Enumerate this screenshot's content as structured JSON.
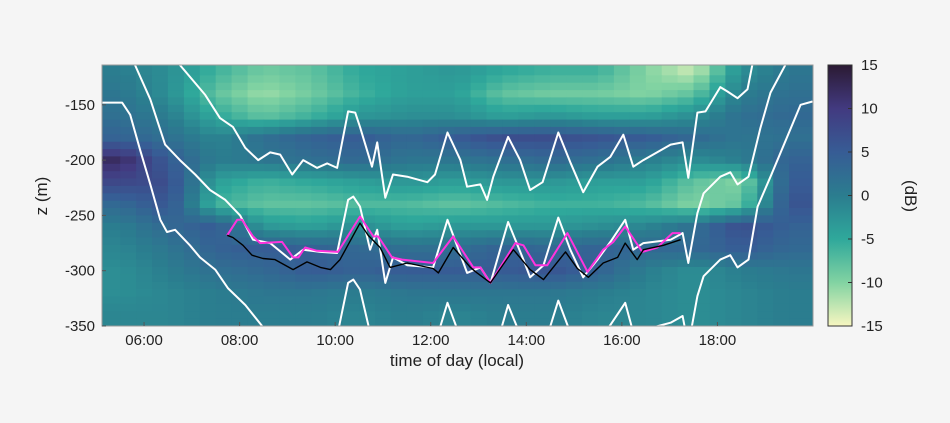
{
  "chart_data": {
    "type": "heatmap",
    "title": "",
    "xlabel": "time of day (local)",
    "ylabel": "z (m)",
    "xlim_hours": [
      5.12,
      20.0
    ],
    "ylim": [
      -350,
      -114
    ],
    "x_ticks": [
      {
        "v": 6,
        "label": "06:00"
      },
      {
        "v": 8,
        "label": "08:00"
      },
      {
        "v": 10,
        "label": "10:00"
      },
      {
        "v": 12,
        "label": "12:00"
      },
      {
        "v": 14,
        "label": "14:00"
      },
      {
        "v": 16,
        "label": "16:00"
      },
      {
        "v": 18,
        "label": "18:00"
      }
    ],
    "y_ticks": [
      {
        "v": -150,
        "label": "-150"
      },
      {
        "v": -200,
        "label": "-200"
      },
      {
        "v": -250,
        "label": "-250"
      },
      {
        "v": -300,
        "label": "-300"
      },
      {
        "v": -350,
        "label": "-350"
      }
    ],
    "colorbar": {
      "label": "(dB)",
      "range": [
        -15,
        15
      ],
      "ticks": [
        {
          "v": 15,
          "label": "15"
        },
        {
          "v": 10,
          "label": "10"
        },
        {
          "v": 5,
          "label": "5"
        },
        {
          "v": 0,
          "label": "0"
        },
        {
          "v": -5,
          "label": "-5"
        },
        {
          "v": -10,
          "label": "-10"
        },
        {
          "v": -15,
          "label": "-15"
        }
      ],
      "colormap_stops": [
        [
          -15,
          "#f7f6c0"
        ],
        [
          -10,
          "#82d3a2"
        ],
        [
          -5,
          "#2fa89b"
        ],
        [
          0,
          "#2b7d8f"
        ],
        [
          5,
          "#375c95"
        ],
        [
          10,
          "#423a80"
        ],
        [
          15,
          "#2b1a33"
        ]
      ]
    },
    "heatmap": {
      "x_hours": [
        5.5,
        6.5,
        7.5,
        8.5,
        9.5,
        10.5,
        11.5,
        12.5,
        13.5,
        14.5,
        15.5,
        16.5,
        17.5,
        18.5,
        19.5
      ],
      "z_m": [
        -120,
        -140,
        -160,
        -180,
        -200,
        -220,
        -240,
        -260,
        -280,
        -300,
        -320,
        -340
      ],
      "values_db": [
        [
          0,
          -2,
          -6,
          -9,
          -8,
          -5,
          -4,
          -3,
          -5,
          -6,
          -6,
          -10,
          -13,
          -2,
          1
        ],
        [
          1,
          -2,
          -8,
          -11,
          -9,
          -6,
          -4,
          -4,
          -8,
          -9,
          -9,
          -10,
          -8,
          0,
          2
        ],
        [
          2,
          0,
          -5,
          -8,
          -6,
          -3,
          -2,
          -2,
          -4,
          -3,
          -4,
          -4,
          -2,
          2,
          3
        ],
        [
          4,
          2,
          -1,
          2,
          4,
          5,
          3,
          5,
          7,
          7,
          6,
          5,
          3,
          1,
          2
        ],
        [
          12,
          5,
          0,
          1,
          2,
          3,
          1,
          1,
          2,
          3,
          2,
          0,
          -2,
          0,
          4
        ],
        [
          8,
          7,
          -4,
          -6,
          -5,
          -4,
          -3,
          -4,
          -3,
          -3,
          -4,
          -4,
          -8,
          -10,
          5
        ],
        [
          3,
          6,
          -6,
          -8,
          -8,
          -7,
          -7,
          -8,
          -7,
          -6,
          -6,
          -7,
          -10,
          -8,
          6
        ],
        [
          0,
          3,
          5,
          -3,
          -4,
          -2,
          -4,
          -3,
          -3,
          -3,
          -2,
          -1,
          2,
          7,
          4
        ],
        [
          -1,
          1,
          4,
          5,
          4,
          3,
          2,
          2,
          4,
          3,
          4,
          3,
          3,
          5,
          3
        ],
        [
          -2,
          0,
          2,
          3,
          5,
          4,
          5,
          5,
          5,
          6,
          4,
          0,
          -2,
          0,
          1
        ],
        [
          -2,
          -1,
          0,
          1,
          1,
          0,
          1,
          1,
          1,
          1,
          0,
          -1,
          -2,
          -1,
          0
        ],
        [
          -1,
          -1,
          0,
          0,
          0,
          -1,
          0,
          -1,
          0,
          0,
          -1,
          -1,
          -2,
          -1,
          0
        ]
      ]
    },
    "lines": [
      {
        "color": "#ffffff",
        "points": [
          [
            6.75,
            -114
          ],
          [
            7.28,
            -141
          ],
          [
            7.59,
            -162
          ],
          [
            7.86,
            -170
          ],
          [
            8.12,
            -189
          ],
          [
            8.39,
            -200
          ],
          [
            8.64,
            -193
          ],
          [
            8.85,
            -195
          ],
          [
            9.1,
            -213
          ],
          [
            9.33,
            -200
          ],
          [
            9.62,
            -207
          ],
          [
            9.83,
            -203
          ],
          [
            10.04,
            -207
          ],
          [
            10.27,
            -156
          ],
          [
            10.42,
            -157
          ],
          [
            10.52,
            -170
          ],
          [
            10.77,
            -206
          ],
          [
            10.88,
            -184
          ],
          [
            11.05,
            -234
          ],
          [
            11.21,
            -213
          ],
          [
            11.51,
            -215
          ],
          [
            11.93,
            -220
          ],
          [
            12.09,
            -213
          ],
          [
            12.35,
            -175
          ],
          [
            12.62,
            -200
          ],
          [
            12.76,
            -224
          ],
          [
            13.04,
            -222
          ],
          [
            13.18,
            -236
          ],
          [
            13.31,
            -215
          ],
          [
            13.62,
            -179
          ],
          [
            13.87,
            -200
          ],
          [
            14.08,
            -227
          ],
          [
            14.34,
            -220
          ],
          [
            14.67,
            -175
          ],
          [
            14.92,
            -202
          ],
          [
            15.19,
            -229
          ],
          [
            15.49,
            -206
          ],
          [
            15.76,
            -197
          ],
          [
            16.03,
            -177
          ],
          [
            16.24,
            -206
          ],
          [
            16.45,
            -200
          ],
          [
            17.02,
            -186
          ],
          [
            17.27,
            -184
          ],
          [
            17.39,
            -216
          ],
          [
            17.58,
            -157
          ],
          [
            17.75,
            -156
          ],
          [
            18.06,
            -134
          ],
          [
            18.21,
            -138
          ],
          [
            18.42,
            -144
          ],
          [
            18.63,
            -136
          ],
          [
            18.73,
            -114
          ]
        ]
      },
      {
        "color": "#ffffff",
        "points": [
          [
            5.81,
            -114
          ],
          [
            6.13,
            -145
          ],
          [
            6.44,
            -186
          ],
          [
            6.75,
            -200
          ],
          [
            7.07,
            -213
          ],
          [
            7.38,
            -227
          ],
          [
            7.7,
            -236
          ],
          [
            8.01,
            -250
          ],
          [
            8.28,
            -272
          ],
          [
            8.64,
            -275
          ],
          [
            9.06,
            -290
          ],
          [
            9.33,
            -281
          ],
          [
            9.69,
            -283
          ],
          [
            10.04,
            -284
          ],
          [
            10.27,
            -236
          ],
          [
            10.38,
            -233
          ],
          [
            10.52,
            -242
          ],
          [
            10.73,
            -281
          ],
          [
            10.88,
            -263
          ],
          [
            11.05,
            -311
          ],
          [
            11.21,
            -288
          ],
          [
            11.51,
            -295
          ],
          [
            12.05,
            -297
          ],
          [
            12.35,
            -254
          ],
          [
            12.76,
            -302
          ],
          [
            13.04,
            -297
          ],
          [
            13.25,
            -311
          ],
          [
            13.62,
            -256
          ],
          [
            13.94,
            -290
          ],
          [
            14.08,
            -306
          ],
          [
            14.36,
            -295
          ],
          [
            14.67,
            -252
          ],
          [
            14.92,
            -281
          ],
          [
            15.19,
            -306
          ],
          [
            15.49,
            -290
          ],
          [
            15.76,
            -274
          ],
          [
            16.07,
            -254
          ],
          [
            16.24,
            -281
          ],
          [
            16.45,
            -275
          ],
          [
            17.02,
            -272
          ],
          [
            17.27,
            -266
          ],
          [
            17.39,
            -293
          ],
          [
            17.58,
            -248
          ],
          [
            17.71,
            -230
          ],
          [
            18.06,
            -215
          ],
          [
            18.27,
            -211
          ],
          [
            18.42,
            -222
          ],
          [
            18.65,
            -215
          ],
          [
            18.9,
            -171
          ],
          [
            19.11,
            -139
          ],
          [
            19.42,
            -114
          ]
        ]
      },
      {
        "color": "#ffffff",
        "points": [
          [
            5.12,
            -148
          ],
          [
            5.54,
            -148
          ],
          [
            5.71,
            -159
          ],
          [
            5.92,
            -191
          ],
          [
            6.13,
            -222
          ],
          [
            6.34,
            -254
          ],
          [
            6.48,
            -265
          ],
          [
            6.65,
            -263
          ],
          [
            6.96,
            -277
          ],
          [
            7.17,
            -288
          ],
          [
            7.49,
            -299
          ],
          [
            7.76,
            -316
          ],
          [
            8.12,
            -331
          ],
          [
            8.47,
            -350
          ],
          [
            9.0,
            -375
          ],
          [
            9.69,
            -358
          ],
          [
            10.04,
            -359
          ],
          [
            10.27,
            -311
          ],
          [
            10.38,
            -308
          ],
          [
            10.52,
            -317
          ],
          [
            10.73,
            -356
          ],
          [
            11.4,
            -380
          ],
          [
            12.05,
            -372
          ],
          [
            12.35,
            -329
          ],
          [
            12.76,
            -377
          ],
          [
            13.25,
            -386
          ],
          [
            13.62,
            -331
          ],
          [
            13.94,
            -365
          ],
          [
            14.36,
            -370
          ],
          [
            14.67,
            -327
          ],
          [
            14.92,
            -356
          ],
          [
            15.3,
            -375
          ],
          [
            15.76,
            -349
          ],
          [
            16.07,
            -329
          ],
          [
            16.24,
            -356
          ],
          [
            17.02,
            -347
          ],
          [
            17.27,
            -341
          ],
          [
            17.39,
            -368
          ],
          [
            17.58,
            -323
          ],
          [
            17.71,
            -305
          ],
          [
            18.06,
            -290
          ],
          [
            18.27,
            -286
          ],
          [
            18.42,
            -297
          ],
          [
            18.65,
            -290
          ],
          [
            18.84,
            -242
          ],
          [
            19.11,
            -215
          ],
          [
            19.74,
            -150
          ],
          [
            19.99,
            -147
          ]
        ]
      },
      {
        "color": "#ff33dd",
        "points": [
          [
            7.74,
            -268
          ],
          [
            7.95,
            -254
          ],
          [
            8.05,
            -254
          ],
          [
            8.28,
            -269
          ],
          [
            8.43,
            -275
          ],
          [
            8.89,
            -274
          ],
          [
            9.12,
            -288
          ],
          [
            9.23,
            -288
          ],
          [
            9.37,
            -279
          ],
          [
            9.62,
            -282
          ],
          [
            10.06,
            -283
          ],
          [
            10.52,
            -251
          ],
          [
            10.8,
            -269
          ],
          [
            10.9,
            -269
          ],
          [
            11.19,
            -288
          ],
          [
            11.4,
            -290
          ],
          [
            12.05,
            -293
          ],
          [
            12.47,
            -269
          ],
          [
            12.89,
            -297
          ],
          [
            13.04,
            -297
          ],
          [
            13.25,
            -311
          ],
          [
            13.77,
            -275
          ],
          [
            13.94,
            -277
          ],
          [
            14.19,
            -295
          ],
          [
            14.44,
            -295
          ],
          [
            14.86,
            -266
          ],
          [
            15.28,
            -301
          ],
          [
            15.61,
            -281
          ],
          [
            15.82,
            -274
          ],
          [
            16.07,
            -260
          ],
          [
            16.43,
            -283
          ],
          [
            16.74,
            -279
          ],
          [
            17.06,
            -266
          ],
          [
            17.23,
            -266
          ]
        ]
      },
      {
        "color": "#000000",
        "points": [
          [
            7.74,
            -268
          ],
          [
            7.86,
            -270
          ],
          [
            8.07,
            -277
          ],
          [
            8.26,
            -286
          ],
          [
            8.49,
            -289
          ],
          [
            8.74,
            -290
          ],
          [
            9.12,
            -299
          ],
          [
            9.41,
            -292
          ],
          [
            9.69,
            -297
          ],
          [
            9.9,
            -299
          ],
          [
            10.1,
            -290
          ],
          [
            10.52,
            -257
          ],
          [
            10.69,
            -268
          ],
          [
            10.94,
            -279
          ],
          [
            11.15,
            -297
          ],
          [
            11.51,
            -293
          ],
          [
            12.05,
            -298
          ],
          [
            12.16,
            -302
          ],
          [
            12.47,
            -279
          ],
          [
            12.83,
            -297
          ],
          [
            12.97,
            -302
          ],
          [
            13.25,
            -311
          ],
          [
            13.73,
            -281
          ],
          [
            14.08,
            -299
          ],
          [
            14.36,
            -308
          ],
          [
            14.82,
            -283
          ],
          [
            15.07,
            -298
          ],
          [
            15.3,
            -306
          ],
          [
            15.61,
            -293
          ],
          [
            15.91,
            -288
          ],
          [
            16.07,
            -275
          ],
          [
            16.32,
            -290
          ],
          [
            16.45,
            -281
          ],
          [
            16.87,
            -277
          ],
          [
            17.23,
            -272
          ]
        ]
      }
    ]
  }
}
